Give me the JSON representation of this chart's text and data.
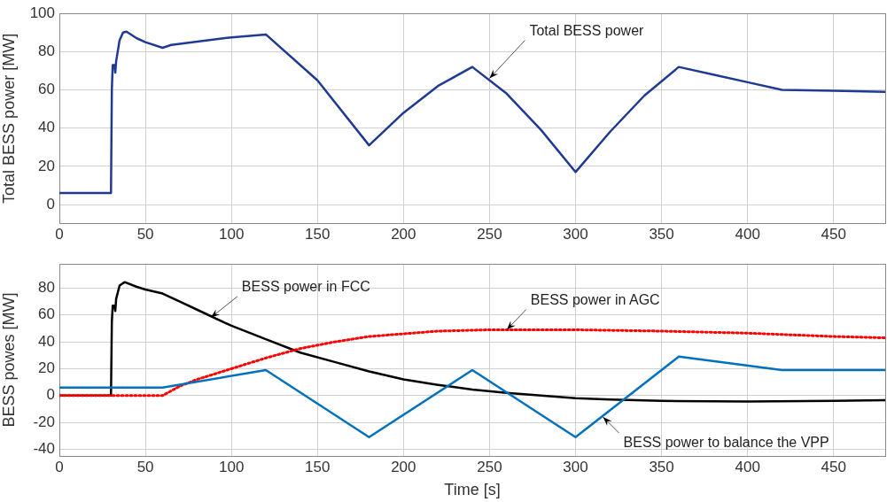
{
  "chart_data": [
    {
      "type": "line",
      "ylabel": "Total BESS power [MW]",
      "xlim": [
        0,
        480
      ],
      "xticks": [
        0,
        50,
        100,
        150,
        200,
        250,
        300,
        350,
        400,
        450
      ],
      "ylim": [
        -10,
        100
      ],
      "yticks": [
        0,
        20,
        40,
        60,
        80,
        100
      ],
      "grid": true,
      "marker": "none",
      "annotations": [
        {
          "text": "Total BESS power",
          "x": 250,
          "y": 66
        }
      ],
      "series": [
        {
          "color": "#1f3a93",
          "x": [
            0,
            30,
            30.5,
            31,
            32,
            32.5,
            33,
            35,
            37,
            39,
            45,
            50,
            60,
            65,
            100,
            120,
            150,
            180,
            200,
            220,
            240,
            260,
            280,
            300,
            320,
            340,
            360,
            380,
            400,
            420,
            450,
            480
          ],
          "values": [
            6,
            6,
            60,
            73,
            73,
            69,
            75,
            86,
            90,
            90.5,
            87,
            85,
            82,
            83.5,
            87.5,
            89,
            65,
            31,
            48,
            62,
            72,
            58,
            39,
            17,
            38,
            57,
            72,
            68,
            64,
            60,
            59.5,
            59
          ]
        }
      ]
    },
    {
      "type": "line",
      "ylabel": "BESS powes [MW]",
      "xlabel": "Time [s]",
      "xlim": [
        0,
        480
      ],
      "xticks": [
        0,
        50,
        100,
        150,
        200,
        250,
        300,
        350,
        400,
        450
      ],
      "ylim": [
        -45,
        98
      ],
      "yticks": [
        -40,
        -20,
        0,
        20,
        40,
        60,
        80
      ],
      "grid": true,
      "marker": "none",
      "annotations": [
        {
          "text": "BESS power in FCC",
          "x": 88,
          "y": 58
        },
        {
          "text": "BESS power in AGC",
          "x": 260,
          "y": 49
        },
        {
          "text": "BESS power to balance the VPP",
          "x": 316,
          "y": -16
        }
      ],
      "series": [
        {
          "color": "#0072bd",
          "line_style": "solid",
          "x": [
            0,
            60,
            120,
            180,
            240,
            300,
            360,
            420,
            480
          ],
          "values": [
            6,
            6,
            19,
            -31,
            19,
            -31,
            29,
            19,
            19
          ]
        },
        {
          "color": "#ff0000",
          "line_style": "dotted",
          "x": [
            0,
            60,
            70,
            80,
            100,
            120,
            140,
            160,
            180,
            200,
            220,
            250,
            300,
            350,
            400,
            450,
            480
          ],
          "values": [
            0,
            0,
            7,
            12,
            20,
            28,
            35,
            40,
            44,
            46,
            48,
            49,
            49,
            48,
            46.5,
            44,
            43
          ]
        },
        {
          "color": "#000000",
          "line_style": "solid",
          "x": [
            0,
            30,
            30.5,
            31,
            32,
            32.5,
            33,
            35,
            38,
            45,
            50,
            60,
            70,
            80,
            100,
            120,
            140,
            160,
            180,
            200,
            220,
            240,
            260,
            280,
            300,
            320,
            350,
            400,
            450,
            480
          ],
          "values": [
            0,
            0,
            55,
            67,
            67,
            63,
            72,
            82,
            84.5,
            81,
            79,
            76,
            70,
            64,
            52,
            42,
            32,
            25,
            18,
            12,
            8,
            4.5,
            2,
            0,
            -2,
            -3,
            -4,
            -4.5,
            -4,
            -3.5
          ]
        }
      ]
    }
  ]
}
